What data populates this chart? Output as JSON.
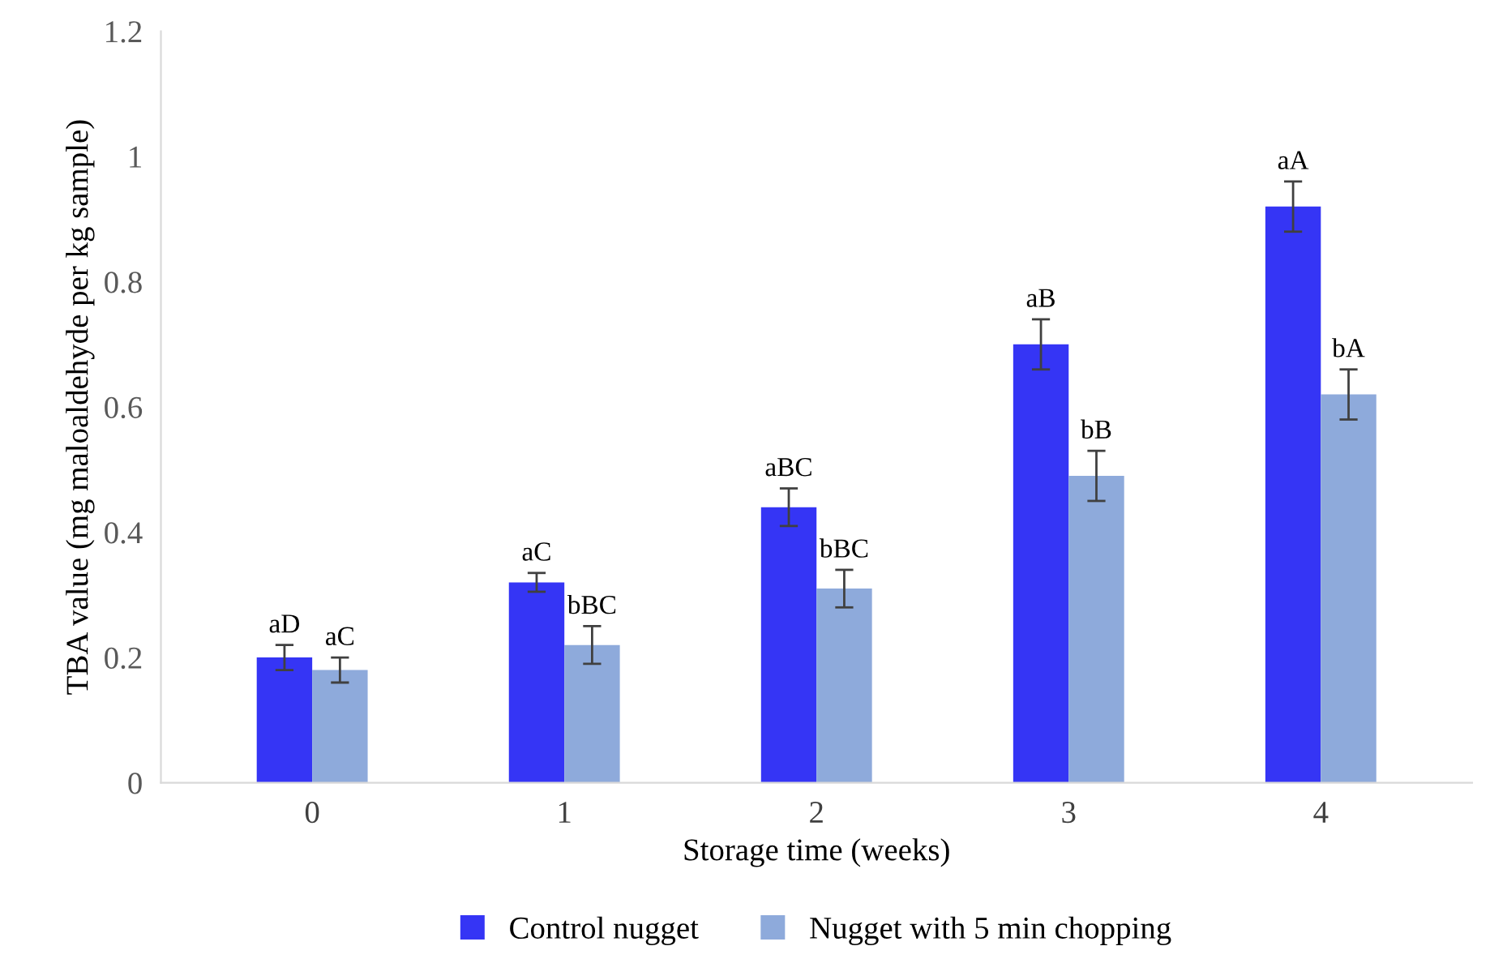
{
  "chart_data": {
    "type": "bar",
    "xlabel": "Storage time (weeks)",
    "ylabel": "TBA value (mg maloaldehyde per kg sample)",
    "categories": [
      "0",
      "1",
      "2",
      "3",
      "4"
    ],
    "series": [
      {
        "name": "Control nugget",
        "color": "#3535f5",
        "values": [
          0.2,
          0.32,
          0.44,
          0.7,
          0.92
        ],
        "errors": [
          0.02,
          0.015,
          0.03,
          0.04,
          0.04
        ],
        "value_labels": [
          "aD",
          "aC",
          "aBC",
          "aB",
          "aA"
        ]
      },
      {
        "name": "Nugget with 5 min chopping",
        "color": "#8eaadb",
        "values": [
          0.18,
          0.22,
          0.31,
          0.49,
          0.62
        ],
        "errors": [
          0.02,
          0.03,
          0.03,
          0.04,
          0.04
        ],
        "value_labels": [
          "aC",
          "bBC",
          "bBC",
          "bB",
          "bA"
        ]
      }
    ],
    "ylim": [
      0,
      1.2
    ],
    "yticks": [
      0,
      0.2,
      0.4,
      0.6,
      0.8,
      1,
      1.2
    ],
    "grid": false,
    "legend": "bottom"
  }
}
